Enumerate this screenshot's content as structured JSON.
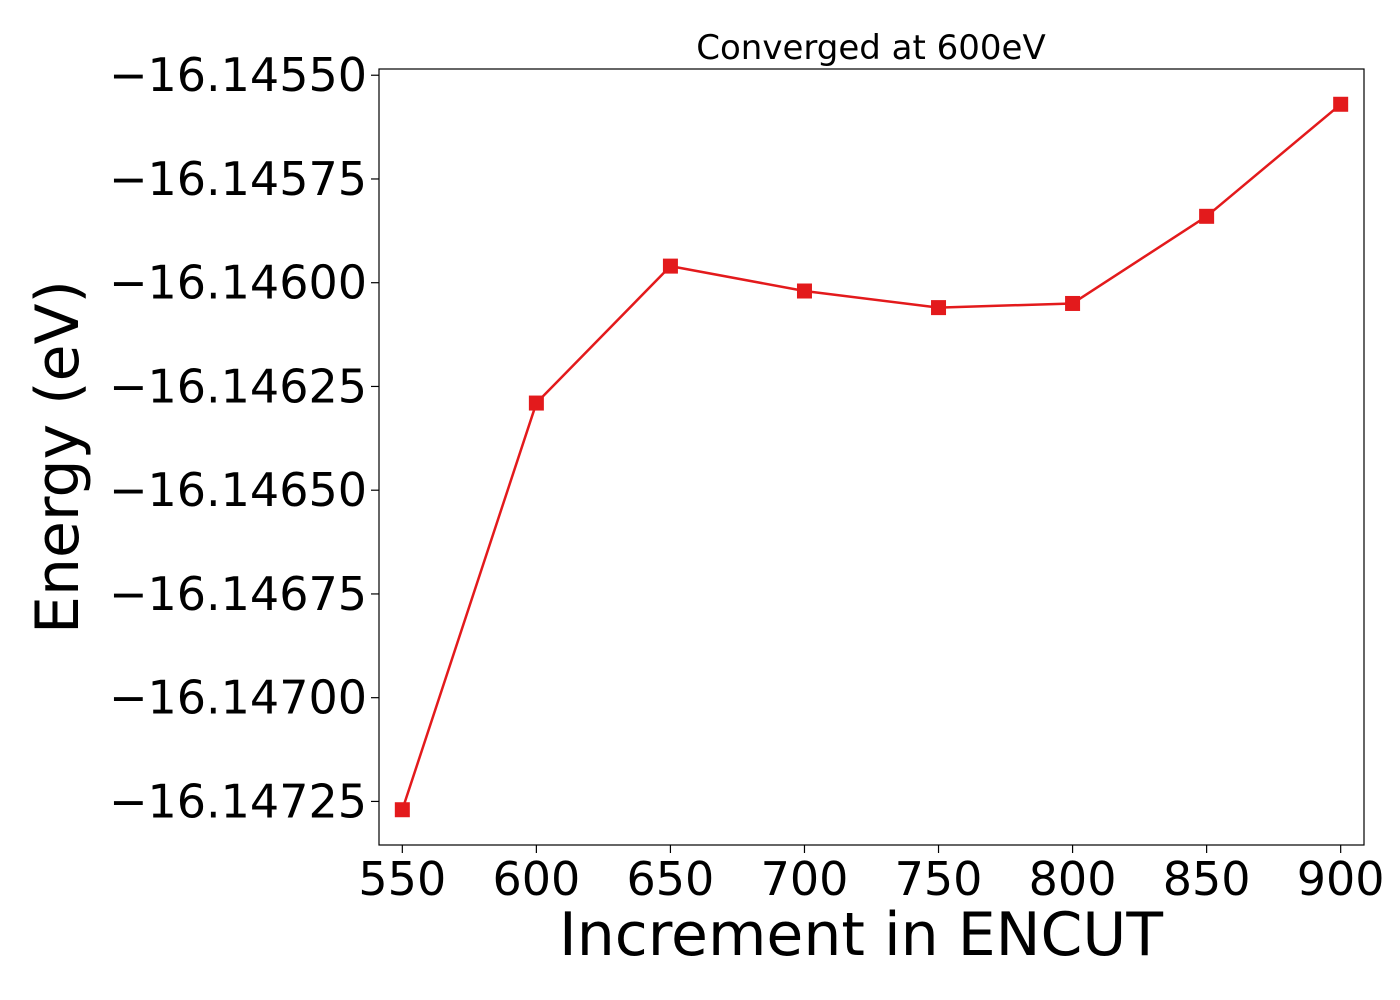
{
  "chart_data": {
    "type": "line",
    "title": "Converged at 600eV",
    "xlabel": "Increment in ENCUT",
    "ylabel": "Energy (eV)",
    "x": [
      550,
      600,
      650,
      700,
      750,
      800,
      850,
      900
    ],
    "series": [
      {
        "values": [
          -16.14727,
          -16.14629,
          -16.14596,
          -16.14602,
          -16.14606,
          -16.14605,
          -16.14584,
          -16.14557
        ],
        "color": "#e31a1c",
        "marker": "square"
      }
    ],
    "xlim": [
      541.3,
      908.7
    ],
    "ylim": [
      -16.147355,
      -16.145485
    ],
    "xticks": [
      550,
      600,
      650,
      700,
      750,
      800,
      850,
      900
    ],
    "xtick_labels": [
      "550",
      "600",
      "650",
      "700",
      "750",
      "800",
      "850",
      "900"
    ],
    "yticks": [
      -16.1455,
      -16.14575,
      -16.146,
      -16.14625,
      -16.1465,
      -16.14675,
      -16.147,
      -16.14725
    ],
    "ytick_labels": [
      "−16.14550",
      "−16.14575",
      "−16.14600",
      "−16.14625",
      "−16.14650",
      "−16.14675",
      "−16.14700",
      "−16.14725"
    ],
    "grid": false,
    "legend": "none"
  }
}
